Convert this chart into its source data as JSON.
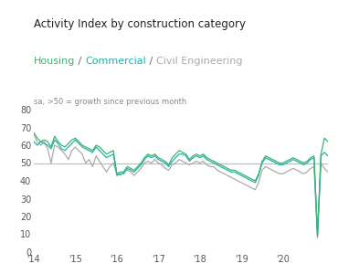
{
  "title": "Activity Index by construction category",
  "subtitle_parts": [
    "Housing",
    " / ",
    "Commercial",
    " / ",
    "Civil Engineering"
  ],
  "subtitle_colors": [
    "#3cb371",
    "#666666",
    "#20b2aa",
    "#666666",
    "#aaaaaa"
  ],
  "note": "sa, >50 = growth since previous month",
  "ylim": [
    0,
    80
  ],
  "yticks": [
    0,
    10,
    20,
    30,
    40,
    50,
    60,
    70,
    80
  ],
  "hline": 50,
  "hline_color": "#bbbbbb",
  "x_labels": [
    "'14",
    "'15",
    "'16",
    "'17",
    "'18",
    "'19",
    "'20"
  ],
  "housing": [
    67,
    64,
    62,
    63,
    62,
    59,
    65,
    62,
    60,
    59,
    61,
    63,
    64,
    62,
    60,
    59,
    58,
    57,
    60,
    59,
    57,
    55,
    56,
    57,
    44,
    45,
    45,
    48,
    47,
    46,
    48,
    50,
    53,
    55,
    54,
    55,
    53,
    52,
    51,
    49,
    53,
    55,
    57,
    56,
    55,
    52,
    54,
    55,
    54,
    55,
    53,
    52,
    51,
    50,
    49,
    48,
    47,
    46,
    46,
    45,
    44,
    43,
    42,
    41,
    40,
    44,
    51,
    54,
    53,
    52,
    51,
    50,
    50,
    51,
    52,
    53,
    52,
    51,
    50,
    51,
    53,
    54,
    10,
    55,
    64,
    62
  ],
  "commercial": [
    62,
    60,
    62,
    61,
    60,
    58,
    63,
    61,
    58,
    57,
    59,
    61,
    63,
    61,
    59,
    58,
    57,
    56,
    59,
    57,
    55,
    53,
    54,
    55,
    43,
    44,
    44,
    47,
    46,
    45,
    47,
    49,
    52,
    54,
    53,
    54,
    52,
    51,
    50,
    48,
    51,
    53,
    55,
    55,
    54,
    51,
    53,
    54,
    53,
    54,
    52,
    51,
    50,
    49,
    48,
    47,
    46,
    45,
    45,
    44,
    43,
    42,
    41,
    40,
    39,
    43,
    50,
    53,
    52,
    51,
    50,
    49,
    49,
    50,
    51,
    52,
    51,
    50,
    49,
    50,
    52,
    53,
    9,
    54,
    56,
    54
  ],
  "civil": [
    66,
    62,
    60,
    62,
    58,
    50,
    60,
    59,
    57,
    55,
    52,
    57,
    59,
    57,
    55,
    50,
    52,
    48,
    54,
    51,
    48,
    45,
    48,
    50,
    44,
    43,
    45,
    46,
    45,
    43,
    45,
    47,
    50,
    51,
    50,
    52,
    50,
    49,
    47,
    46,
    49,
    50,
    52,
    51,
    50,
    49,
    50,
    51,
    50,
    51,
    49,
    48,
    48,
    46,
    45,
    44,
    43,
    42,
    41,
    40,
    39,
    38,
    37,
    36,
    35,
    39,
    46,
    48,
    47,
    46,
    45,
    44,
    44,
    45,
    46,
    47,
    46,
    45,
    44,
    45,
    47,
    48,
    8,
    50,
    47,
    45
  ],
  "housing_color": "#3cb371",
  "commercial_color": "#20b2aa",
  "civil_color": "#aaaaaa",
  "background_color": "#ffffff",
  "title_fontsize": 8.5,
  "subtitle_fontsize": 8,
  "note_fontsize": 6,
  "tick_fontsize": 7
}
